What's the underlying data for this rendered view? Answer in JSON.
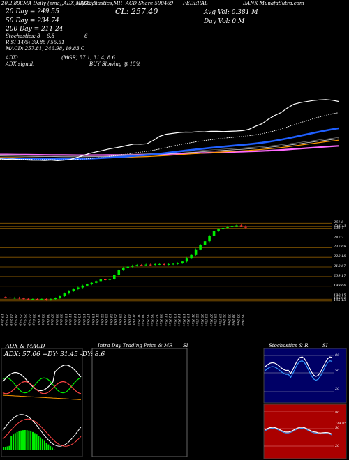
{
  "header": {
    "row1": [
      "20,2,89",
      "EMA Daily (ema),ADX,MACD,R",
      "SI,Stochastics,MR",
      "ACD Share 500469",
      "FEDERAL",
      "BANK MunafaSutra.com"
    ],
    "ma20": "20 Day = 249.55",
    "close": "CL: 257.40",
    "avg_vol": "Avg Vol: 0.381 M",
    "day_vol": "Day Vol: 0   M",
    "ma50": "50 Day = 234.74",
    "ma200": "200 Day = 211.24",
    "stoch": [
      "Stochastics: 8",
      "6.8",
      "6"
    ],
    "rsi": "R          SI 14/5: 39.85 / 55.51",
    "macd": "MACD: 257.81, 246.98, 10.83 C",
    "adx": [
      "ADX:",
      "(MGR) 57.1, 31.4, 8.6"
    ],
    "adx_signal": [
      "ADX  signal:",
      "BUY Slowing @ 15%"
    ]
  },
  "price_levels": [
    "261.8",
    "258.73",
    "256.7",
    "247.2",
    "237.69",
    "228.18",
    "218.67",
    "209.17",
    "199.66",
    "190.15",
    "186.91",
    "185.13"
  ],
  "dates": [
    "19 Sep",
    "20 Sep",
    "23 Sep",
    "24 Sep",
    "25 Sep",
    "26 Sep",
    "27 Sep",
    "30 Sep",
    "01 Oct",
    "03 Oct",
    "04 Oct",
    "07 Oct",
    "08 Oct",
    "09 Oct",
    "10 Oct",
    "11 Oct",
    "14 Oct",
    "15 Oct",
    "16 Oct",
    "17 Oct",
    "18 Oct",
    "21 Oct",
    "22 Oct",
    "23 Oct",
    "24 Oct",
    "25 Oct",
    "28 Oct",
    "29 Oct",
    "30 Oct",
    "31 Oct",
    "01 Nov",
    "04 Nov",
    "05 Nov",
    "06 Nov",
    "07 Nov",
    "08 Nov",
    "11 Nov",
    "12 Nov",
    "13 Nov",
    "14 Nov",
    "18 Nov",
    "19 Nov",
    "21 Nov",
    "22 Nov",
    "25 Nov",
    "26 Nov",
    "27 Nov",
    "28 Nov",
    "29 Nov",
    "02 Dec",
    "03 Dec",
    "04 Dec",
    "05 Dec",
    "06 Dec"
  ],
  "panels": {
    "adx_macd": {
      "title": "ADX  & MACD",
      "readout": "ADX: 57.06  +DY: 31.45 -DY: 8.6"
    },
    "intraday": {
      "title": "Intra  Day Trading Price  & MR",
      "suffix": "SI"
    },
    "stoch_rsi": {
      "title": "Stochastics & R",
      "suffix": "SI",
      "ticks_top": [
        "80",
        "50",
        "20"
      ],
      "ticks_bottom": [
        "80",
        "50",
        "20"
      ],
      "value_label": "39.85"
    }
  },
  "colors": {
    "up": "#00ee00",
    "down": "#ff3333",
    "ma20": "#ffffff",
    "ma50": "#1f5fff",
    "ma200": "#ff69ff",
    "level_line": "#8b5a00"
  },
  "chart_data": {
    "type": "candlestick",
    "title": "EMA Daily (ema),ADX,MACD,RSI,Stochastics,MRACD Share 500469 FEDERAL BANK",
    "close_series": [
      188.5,
      187.9,
      188.3,
      187.6,
      187.2,
      186.8,
      187.0,
      186.6,
      187.1,
      186.3,
      186.9,
      187.8,
      190.0,
      192.5,
      195.0,
      196.8,
      198.4,
      200.2,
      201.6,
      203.0,
      204.7,
      206.3,
      206.0,
      206.5,
      210.5,
      215.5,
      218.0,
      219.0,
      220.0,
      220.6,
      220.5,
      221.0,
      220.8,
      221.5,
      221.5,
      221.2,
      221.5,
      221.8,
      222.3,
      224.0,
      227.5,
      230.5,
      236.0,
      240.5,
      244.0,
      249.5,
      254.0,
      256.0,
      257.2,
      258.5,
      259.2,
      259.6,
      258.9,
      257.4
    ],
    "ylim": [
      185,
      262
    ],
    "price_levels": [
      261.8,
      258.73,
      256.7,
      247.2,
      237.69,
      228.18,
      218.67,
      209.17,
      199.66,
      190.15,
      186.91,
      185.13
    ],
    "ema20": 249.55,
    "ema50": 234.74,
    "ema200": 211.24,
    "rsi": [
      39.85,
      55.51
    ],
    "stochastics": [
      8,
      6.8,
      6
    ],
    "macd": [
      257.81,
      246.98,
      10.83
    ],
    "adx": [
      57.06,
      31.45,
      8.6
    ]
  }
}
